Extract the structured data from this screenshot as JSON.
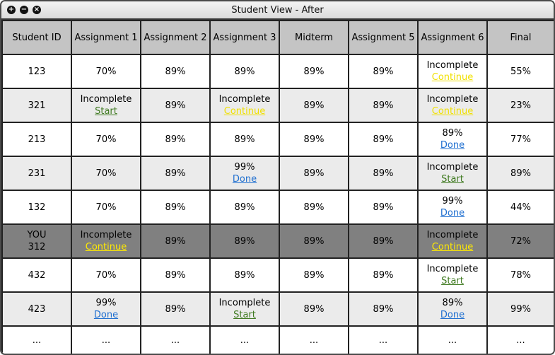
{
  "window": {
    "title": "Student View - After",
    "controls": {
      "add": "+",
      "minimize": "−",
      "close": "×"
    }
  },
  "colors": {
    "header_bg": "#c4c4c4",
    "row_alt_bg": "#ebebeb",
    "current_user_row_bg": "#808080",
    "link_start": "#3f7a20",
    "link_continue": "#f0e000",
    "link_done": "#1f6fd0"
  },
  "table": {
    "headers": [
      "Student ID",
      "Assignment 1",
      "Assignment 2",
      "Assignment 3",
      "Midterm",
      "Assignment 5",
      "Assignment 6",
      "Final"
    ],
    "rows": [
      {
        "kind": "odd",
        "cells": [
          {
            "text": "123"
          },
          {
            "text": "70%"
          },
          {
            "text": "89%"
          },
          {
            "text": "89%"
          },
          {
            "text": "89%"
          },
          {
            "text": "89%"
          },
          {
            "text": "Incomplete",
            "link": "Continue",
            "link_kind": "continue"
          },
          {
            "text": "55%"
          }
        ]
      },
      {
        "kind": "even",
        "cells": [
          {
            "text": "321"
          },
          {
            "text": "Incomplete",
            "link": "Start",
            "link_kind": "start"
          },
          {
            "text": "89%"
          },
          {
            "text": "Incomplete",
            "link": "Continue",
            "link_kind": "continue"
          },
          {
            "text": "89%"
          },
          {
            "text": "89%"
          },
          {
            "text": "Incomplete",
            "link": "Continue",
            "link_kind": "continue"
          },
          {
            "text": "23%"
          }
        ]
      },
      {
        "kind": "odd",
        "cells": [
          {
            "text": "213"
          },
          {
            "text": "70%"
          },
          {
            "text": "89%"
          },
          {
            "text": "89%"
          },
          {
            "text": "89%"
          },
          {
            "text": "89%"
          },
          {
            "text": "89%",
            "link": "Done",
            "link_kind": "done"
          },
          {
            "text": "77%"
          }
        ]
      },
      {
        "kind": "even",
        "cells": [
          {
            "text": "231"
          },
          {
            "text": "70%"
          },
          {
            "text": "89%"
          },
          {
            "text": "99%",
            "link": "Done",
            "link_kind": "done"
          },
          {
            "text": "89%"
          },
          {
            "text": "89%"
          },
          {
            "text": "Incomplete",
            "link": "Start",
            "link_kind": "start"
          },
          {
            "text": "89%"
          }
        ]
      },
      {
        "kind": "odd",
        "cells": [
          {
            "text": "132"
          },
          {
            "text": "70%"
          },
          {
            "text": "89%"
          },
          {
            "text": "89%"
          },
          {
            "text": "89%"
          },
          {
            "text": "89%"
          },
          {
            "text": "99%",
            "link": "Done",
            "link_kind": "done"
          },
          {
            "text": "44%"
          }
        ]
      },
      {
        "kind": "you",
        "cells": [
          {
            "text": "YOU",
            "text2": "312"
          },
          {
            "text": "Incomplete",
            "link": "Continue",
            "link_kind": "continue"
          },
          {
            "text": "89%"
          },
          {
            "text": "89%"
          },
          {
            "text": "89%"
          },
          {
            "text": "89%"
          },
          {
            "text": "Incomplete",
            "link": "Continue",
            "link_kind": "continue"
          },
          {
            "text": "72%"
          }
        ]
      },
      {
        "kind": "odd",
        "cells": [
          {
            "text": "432"
          },
          {
            "text": "70%"
          },
          {
            "text": "89%"
          },
          {
            "text": "89%"
          },
          {
            "text": "89%"
          },
          {
            "text": "89%"
          },
          {
            "text": "Incomplete",
            "link": "Start",
            "link_kind": "start"
          },
          {
            "text": "78%"
          }
        ]
      },
      {
        "kind": "even",
        "cells": [
          {
            "text": "423"
          },
          {
            "text": "99%",
            "link": "Done",
            "link_kind": "done"
          },
          {
            "text": "89%"
          },
          {
            "text": "Incomplete",
            "link": "Start",
            "link_kind": "start"
          },
          {
            "text": "89%"
          },
          {
            "text": "89%"
          },
          {
            "text": "89%",
            "link": "Done",
            "link_kind": "done"
          },
          {
            "text": "99%"
          }
        ]
      },
      {
        "kind": "last",
        "cells": [
          {
            "text": "..."
          },
          {
            "text": "..."
          },
          {
            "text": "..."
          },
          {
            "text": "..."
          },
          {
            "text": "..."
          },
          {
            "text": "..."
          },
          {
            "text": "..."
          },
          {
            "text": "..."
          }
        ]
      }
    ]
  }
}
